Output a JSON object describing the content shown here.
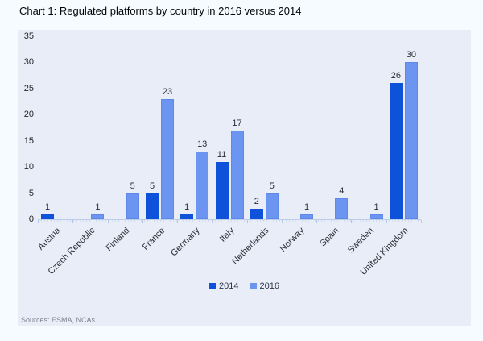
{
  "title": "Chart 1: Regulated platforms by country in 2016 versus 2014",
  "source_note": "Sources: ESMA, NCAs",
  "colors": {
    "page_bg": "#f5fbff",
    "panel_bg": "#e9edf7",
    "axis_line": "#bccde9",
    "series_2014": "#0d52d8",
    "series_2016": "#6b95f0"
  },
  "legend": {
    "items": [
      {
        "label": "2014",
        "color": "#0d52d8"
      },
      {
        "label": "2016",
        "color": "#6b95f0"
      }
    ]
  },
  "chart_data": {
    "type": "bar",
    "title": "Chart 1: Regulated platforms by country in 2016 versus 2014",
    "categories": [
      "Austria",
      "Czech Republic",
      "Finland",
      "France",
      "Germany",
      "Italy",
      "Netherlands",
      "Norway",
      "Spain",
      "Sweden",
      "United Kingdom"
    ],
    "series": [
      {
        "name": "2014",
        "color": "#0d52d8",
        "values": [
          1,
          0,
          0,
          5,
          1,
          11,
          2,
          0,
          0,
          0,
          26
        ]
      },
      {
        "name": "2016",
        "color": "#6b95f0",
        "values": [
          0,
          1,
          5,
          23,
          13,
          17,
          5,
          1,
          4,
          1,
          30
        ]
      }
    ],
    "xlabel": "",
    "ylabel": "",
    "ylim": [
      0,
      35
    ],
    "ytick_step": 5,
    "grid": false,
    "legend_position": "bottom",
    "value_labels": true,
    "hide_zero_value_labels": true
  }
}
